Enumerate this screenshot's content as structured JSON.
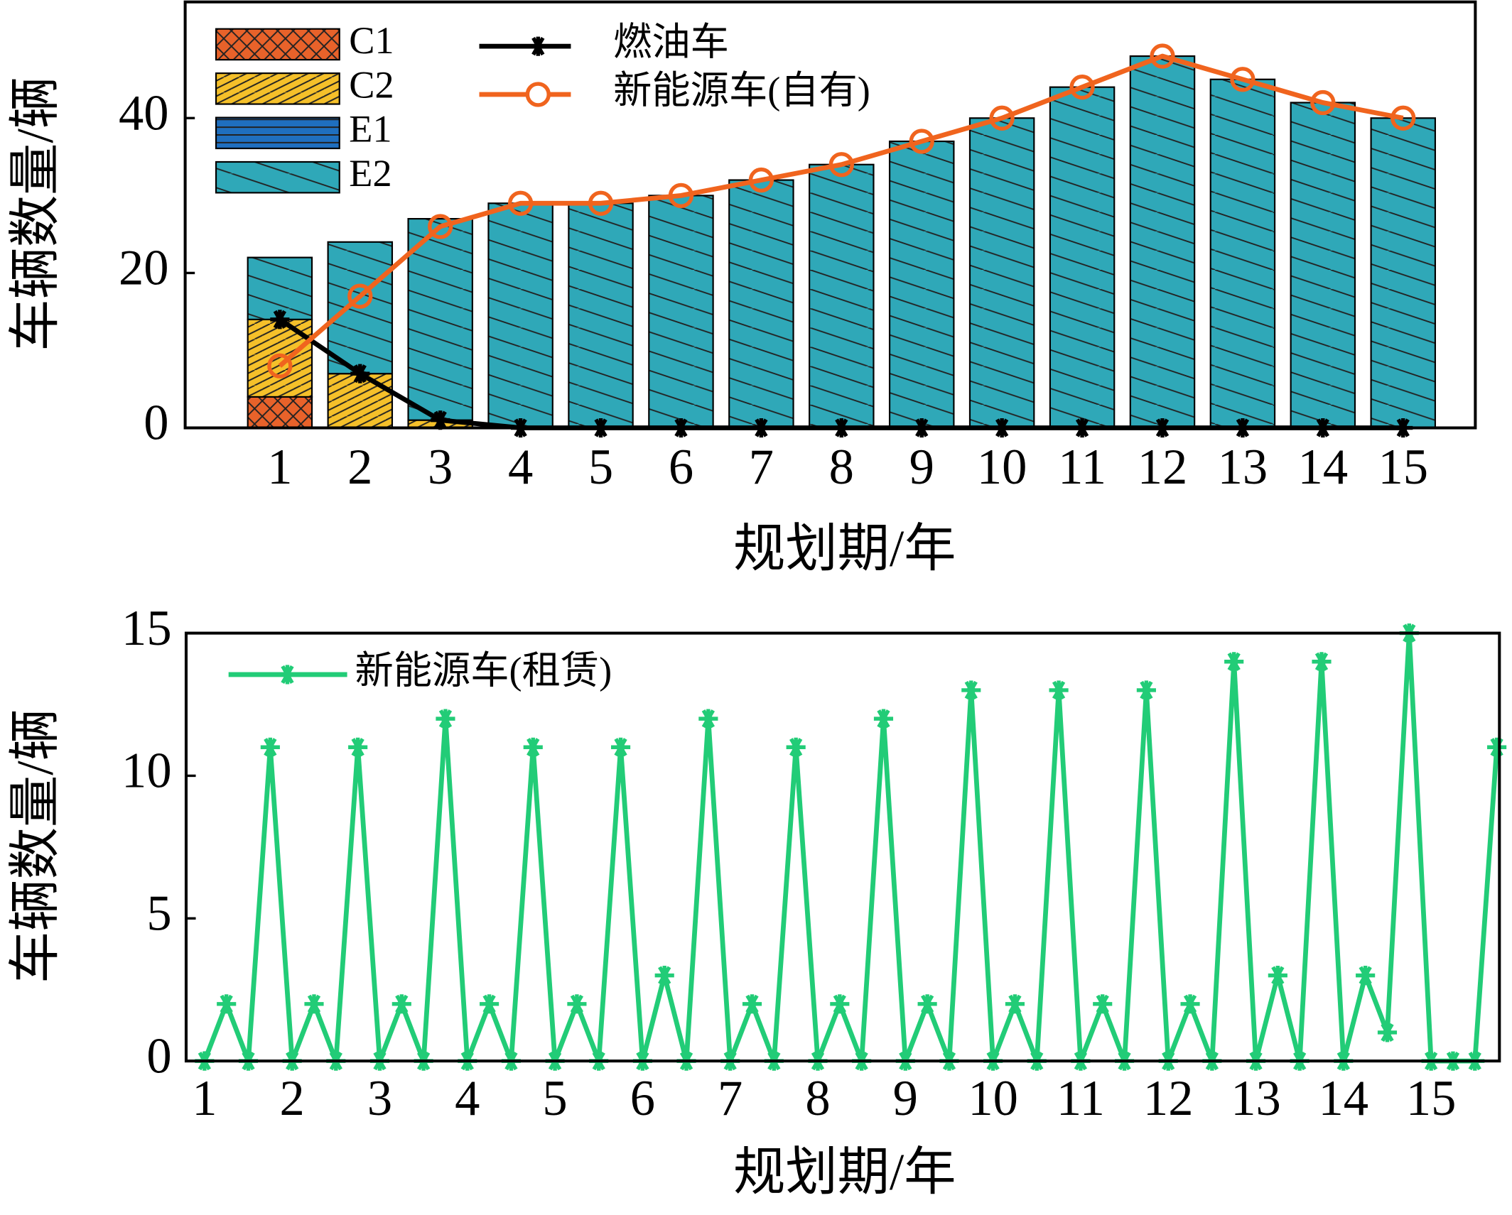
{
  "chart_data": [
    {
      "type": "bar",
      "x": [
        1,
        2,
        3,
        4,
        5,
        6,
        7,
        8,
        9,
        10,
        11,
        12,
        13,
        14,
        15
      ],
      "xlim": [
        -0.18,
        15.9
      ],
      "xticks": [
        1,
        2,
        3,
        4,
        5,
        6,
        7,
        8,
        9,
        10,
        11,
        12,
        13,
        14,
        15
      ],
      "ylim": [
        0,
        55
      ],
      "yticks": [
        0,
        20,
        40
      ],
      "xlabel": "规划期/年",
      "ylabel": "车辆数量/辆",
      "series": [
        {
          "name": "C1",
          "type": "bar",
          "color": "#e8622a",
          "values": [
            4,
            0,
            0,
            0,
            0,
            0,
            0,
            0,
            0,
            0,
            0,
            0,
            0,
            0,
            0
          ]
        },
        {
          "name": "C2",
          "type": "bar",
          "color": "#f5c02a",
          "values": [
            10,
            7,
            1,
            0,
            0,
            0,
            0,
            0,
            0,
            0,
            0,
            0,
            0,
            0,
            0
          ]
        },
        {
          "name": "E1",
          "type": "bar",
          "color": "#1f6fbf",
          "values": [
            0,
            0,
            0,
            0,
            0,
            0,
            0,
            0,
            0,
            0,
            0,
            0,
            0,
            0,
            0
          ]
        },
        {
          "name": "E2",
          "type": "bar",
          "color": "#2fa8b8",
          "values": [
            8,
            17,
            26,
            29,
            29,
            30,
            32,
            34,
            37,
            40,
            44,
            48,
            45,
            42,
            40
          ]
        },
        {
          "name": "燃油车",
          "type": "line",
          "marker": "star",
          "color": "#000000",
          "values": [
            14,
            7,
            1,
            0,
            0,
            0,
            0,
            0,
            0,
            0,
            0,
            0,
            0,
            0,
            0
          ]
        },
        {
          "name": "新能源车(自有)",
          "type": "line",
          "marker": "circle",
          "color": "#f0641e",
          "values": [
            8,
            17,
            26,
            29,
            29,
            30,
            32,
            34,
            37,
            40,
            44,
            48,
            45,
            42,
            40
          ]
        }
      ]
    },
    {
      "type": "line",
      "x": [
        1,
        1.25,
        1.5,
        1.75,
        2,
        2.25,
        2.5,
        2.75,
        3,
        3.25,
        3.5,
        3.75,
        4,
        4.25,
        4.5,
        4.75,
        5,
        5.25,
        5.5,
        5.75,
        6,
        6.25,
        6.5,
        6.75,
        7,
        7.25,
        7.5,
        7.75,
        8,
        8.25,
        8.5,
        8.75,
        9,
        9.25,
        9.5,
        9.75,
        10,
        10.25,
        10.5,
        10.75,
        11,
        11.25,
        11.5,
        11.75,
        12,
        12.25,
        12.5,
        12.75,
        13,
        13.25,
        13.5,
        13.75,
        14,
        14.25,
        14.5,
        14.75,
        15,
        15.25,
        15.5,
        15.75
      ],
      "xlim": [
        0.79,
        15.78
      ],
      "xticks": [
        1,
        2,
        3,
        4,
        5,
        6,
        7,
        8,
        9,
        10,
        11,
        12,
        13,
        14,
        15
      ],
      "ylim": [
        0,
        15
      ],
      "yticks": [
        0,
        5,
        10,
        15
      ],
      "xlabel": "规划期/年",
      "ylabel": "车辆数量/辆",
      "series": [
        {
          "name": "新能源车(租赁)",
          "marker": "star",
          "color": "#22cc77",
          "values": [
            0,
            2,
            0,
            11,
            0,
            2,
            0,
            11,
            0,
            2,
            0,
            12,
            0,
            2,
            0,
            11,
            0,
            2,
            0,
            11,
            0,
            3,
            0,
            12,
            0,
            2,
            0,
            11,
            0,
            2,
            0,
            12,
            0,
            2,
            0,
            13,
            0,
            2,
            0,
            13,
            0,
            2,
            0,
            13,
            0,
            2,
            0,
            14,
            0,
            3,
            0,
            14,
            0,
            3,
            1,
            15,
            0,
            0,
            0,
            11
          ]
        }
      ]
    }
  ]
}
